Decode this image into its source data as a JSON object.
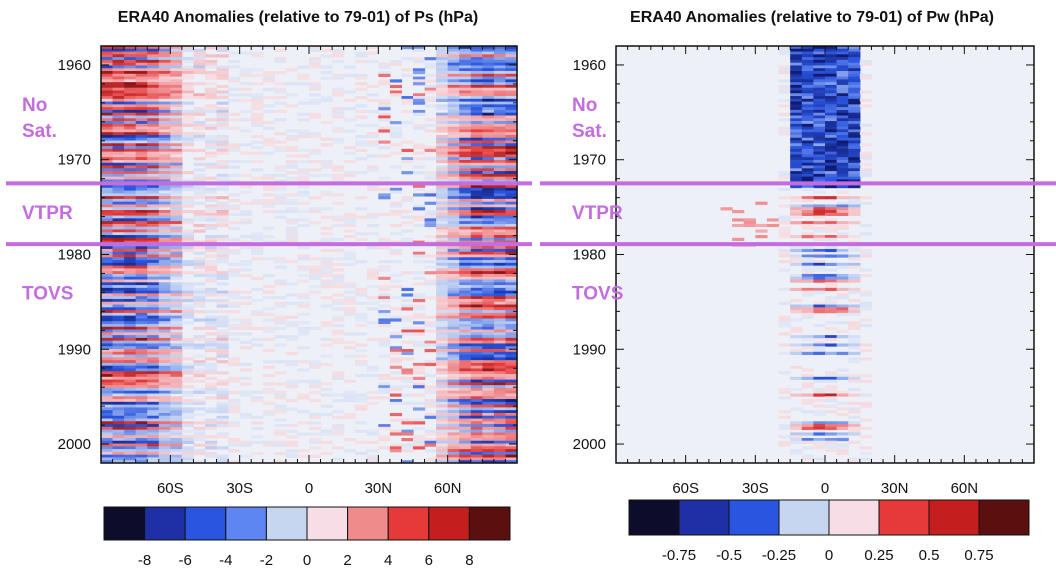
{
  "chart_data": [
    {
      "type": "heatmap",
      "title": "ERA40 Anomalies (relative to 79-01) of Ps (hPa)",
      "xlabel": "",
      "ylabel": "",
      "x_ticks": [
        "60S",
        "30S",
        "0",
        "30N",
        "60N"
      ],
      "x_tick_values": [
        -60,
        -30,
        0,
        30,
        60
      ],
      "xlim": [
        -90,
        90
      ],
      "y_ticks": [
        "1960",
        "1970",
        "1980",
        "1990",
        "2000"
      ],
      "y_tick_values": [
        1960,
        1970,
        1980,
        1990,
        2000
      ],
      "ylim": [
        1958,
        2002
      ],
      "satellite_era_lines": [
        1972.5,
        1978.9
      ],
      "era_labels": [
        {
          "lines": [
            "No",
            "Sat."
          ],
          "year": 1965.5
        },
        {
          "lines": [
            "VTPR"
          ],
          "year": 1975.5
        },
        {
          "lines": [
            "TOVS"
          ],
          "year": 1984
        }
      ],
      "colorbar": {
        "labels": [
          "-8",
          "-6",
          "-4",
          "-2",
          "0",
          "2",
          "4",
          "6",
          "8"
        ],
        "colors": [
          "#0d0d2b",
          "#1f2fa6",
          "#2a55e0",
          "#5e86f2",
          "#c7d6f0",
          "#f6dde6",
          "#f08b8b",
          "#e43a3a",
          "#c41e1e",
          "#5c0f0f"
        ]
      },
      "pattern": "strong alternating red/blue bands at high latitudes (60-90S and 60-90N) in most years, near-zero pale values in the tropics"
    },
    {
      "type": "heatmap",
      "title": "ERA40 Anomalies (relative to 79-01) of Pw (hPa)",
      "xlabel": "",
      "ylabel": "",
      "x_ticks": [
        "60S",
        "30S",
        "0",
        "30N",
        "60N"
      ],
      "x_tick_values": [
        -60,
        -30,
        0,
        30,
        60
      ],
      "xlim": [
        -90,
        90
      ],
      "y_ticks": [
        "1960",
        "1970",
        "1980",
        "1990",
        "2000"
      ],
      "y_tick_values": [
        1960,
        1970,
        1980,
        1990,
        2000
      ],
      "ylim": [
        1958,
        2002
      ],
      "satellite_era_lines": [
        1972.5,
        1978.9
      ],
      "era_labels": [
        {
          "lines": [
            "No",
            "Sat."
          ],
          "year": 1965.5
        },
        {
          "lines": [
            "VTPR"
          ],
          "year": 1975.5
        },
        {
          "lines": [
            "TOVS"
          ],
          "year": 1984
        }
      ],
      "colorbar": {
        "labels": [
          "-0.75",
          "-0.5",
          "-0.25",
          "0",
          "0.25",
          "0.5",
          "0.75"
        ],
        "colors": [
          "#0d0d2b",
          "#1f2fa6",
          "#2a55e0",
          "#c7d6f0",
          "#f6dde6",
          "#e43a3a",
          "#c41e1e",
          "#5c0f0f"
        ]
      },
      "pattern": "large negative (blue) anomalies over the tropics 15S-15N before 1973, small pale anomalies elsewhere; isolated red/blue streaks near the equator in later years"
    }
  ],
  "colors": {
    "era_line": "#c46de0",
    "era_text": "#c46de0",
    "frame": "#111111"
  }
}
